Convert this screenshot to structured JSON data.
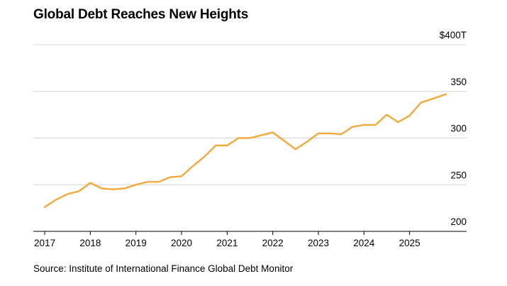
{
  "chart_data": {
    "type": "line",
    "title": "Global Debt Reaches New Heights",
    "source": "Source: Institute of International Finance Global Debt Monitor",
    "xlabel": "",
    "ylabel": "",
    "ylim": [
      200,
      400
    ],
    "xlim": [
      2016.75,
      2026.25
    ],
    "yticks": [
      {
        "value": 400,
        "label": "$400T"
      },
      {
        "value": 350,
        "label": "350"
      },
      {
        "value": 300,
        "label": "300"
      },
      {
        "value": 250,
        "label": "250"
      },
      {
        "value": 200,
        "label": "200"
      }
    ],
    "xticks": [
      {
        "value": 2017,
        "label": "2017"
      },
      {
        "value": 2018,
        "label": "2018"
      },
      {
        "value": 2019,
        "label": "2019"
      },
      {
        "value": 2020,
        "label": "2020"
      },
      {
        "value": 2021,
        "label": "2021"
      },
      {
        "value": 2022,
        "label": "2022"
      },
      {
        "value": 2023,
        "label": "2023"
      },
      {
        "value": 2024,
        "label": "2024"
      },
      {
        "value": 2025,
        "label": "2025"
      }
    ],
    "grid": true,
    "legend": "none",
    "series": [
      {
        "color": "#f2a93b",
        "points": [
          {
            "x": 2017.0,
            "y": 226
          },
          {
            "x": 2017.25,
            "y": 234
          },
          {
            "x": 2017.5,
            "y": 240
          },
          {
            "x": 2017.75,
            "y": 243
          },
          {
            "x": 2018.0,
            "y": 252
          },
          {
            "x": 2018.25,
            "y": 246
          },
          {
            "x": 2018.5,
            "y": 245
          },
          {
            "x": 2018.75,
            "y": 246
          },
          {
            "x": 2019.0,
            "y": 250
          },
          {
            "x": 2019.25,
            "y": 253
          },
          {
            "x": 2019.5,
            "y": 253
          },
          {
            "x": 2019.75,
            "y": 258
          },
          {
            "x": 2020.0,
            "y": 259
          },
          {
            "x": 2020.25,
            "y": 270
          },
          {
            "x": 2020.5,
            "y": 280
          },
          {
            "x": 2020.75,
            "y": 292
          },
          {
            "x": 2021.0,
            "y": 292
          },
          {
            "x": 2021.25,
            "y": 300
          },
          {
            "x": 2021.5,
            "y": 300
          },
          {
            "x": 2021.75,
            "y": 303
          },
          {
            "x": 2022.0,
            "y": 306
          },
          {
            "x": 2022.25,
            "y": 297
          },
          {
            "x": 2022.5,
            "y": 288
          },
          {
            "x": 2022.75,
            "y": 296
          },
          {
            "x": 2023.0,
            "y": 305
          },
          {
            "x": 2023.25,
            "y": 305
          },
          {
            "x": 2023.5,
            "y": 304
          },
          {
            "x": 2023.75,
            "y": 312
          },
          {
            "x": 2024.0,
            "y": 314
          },
          {
            "x": 2024.25,
            "y": 314
          },
          {
            "x": 2024.5,
            "y": 325
          },
          {
            "x": 2024.75,
            "y": 317
          },
          {
            "x": 2025.0,
            "y": 324
          },
          {
            "x": 2025.25,
            "y": 338
          },
          {
            "x": 2025.5,
            "y": 342
          },
          {
            "x": 2025.8,
            "y": 347
          }
        ]
      }
    ]
  }
}
